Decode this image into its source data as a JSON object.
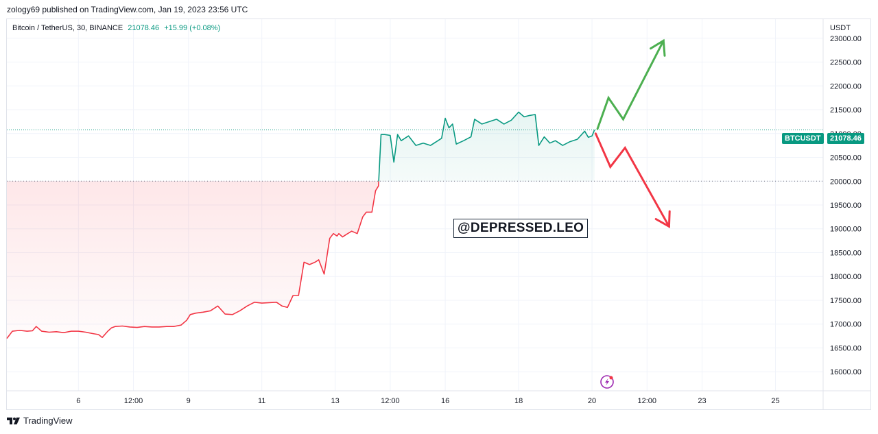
{
  "header": {
    "published_by": "zology69 published on TradingView.com, Jan 19, 2023 23:56 UTC"
  },
  "legend": {
    "symbol": "Bitcoin / TetherUS, 30, BINANCE",
    "price": "21078.46",
    "change": "+15.99 (+0.08%)"
  },
  "badges": {
    "symbol": "BTCUSDT",
    "price": "21078.46"
  },
  "watermark": "@DEPRESSED.LEO",
  "footer": {
    "brand": "TradingView"
  },
  "colors": {
    "up": "#089981",
    "down": "#f23645",
    "arrow_up": "#4caf50",
    "arrow_down": "#f23645",
    "grid": "#f0f3fa"
  },
  "chart_data": {
    "type": "line",
    "title": "Bitcoin / TetherUS, 30, BINANCE",
    "currency_label": "USDT",
    "ylim": [
      15600,
      23400
    ],
    "y_ticks": [
      16000,
      16500,
      17000,
      17500,
      18000,
      18500,
      19000,
      19500,
      20000,
      20500,
      21000,
      21500,
      22000,
      22500,
      23000
    ],
    "y_tick_labels": [
      "16000.00",
      "16500.00",
      "17000.00",
      "17500.00",
      "18000.00",
      "18500.00",
      "19000.00",
      "19500.00",
      "20000.00",
      "20500.00",
      "21000.00",
      "21500.00",
      "22000.00",
      "22500.00",
      "23000.00"
    ],
    "x_range_days": [
      4.05,
      26.3
    ],
    "x_ticks": [
      {
        "t": 6.0,
        "label": "6"
      },
      {
        "t": 7.5,
        "label": "12:00"
      },
      {
        "t": 9.0,
        "label": "9"
      },
      {
        "t": 11.0,
        "label": "11"
      },
      {
        "t": 13.0,
        "label": "13"
      },
      {
        "t": 14.5,
        "label": "12:00"
      },
      {
        "t": 16.0,
        "label": "16"
      },
      {
        "t": 18.0,
        "label": "18"
      },
      {
        "t": 20.0,
        "label": "20"
      },
      {
        "t": 21.5,
        "label": "12:00"
      },
      {
        "t": 23.0,
        "label": "23"
      },
      {
        "t": 25.0,
        "label": "25"
      }
    ],
    "baseline": 20000,
    "last_price": 21078.46,
    "series": [
      {
        "name": "BTCUSDT",
        "x": [
          4.05,
          4.2,
          4.4,
          4.6,
          4.75,
          4.85,
          5.0,
          5.2,
          5.4,
          5.6,
          5.8,
          6.0,
          6.2,
          6.4,
          6.55,
          6.65,
          6.8,
          6.9,
          7.0,
          7.2,
          7.4,
          7.6,
          7.8,
          8.0,
          8.2,
          8.4,
          8.6,
          8.8,
          8.95,
          9.05,
          9.2,
          9.4,
          9.6,
          9.8,
          10.0,
          10.2,
          10.4,
          10.6,
          10.8,
          11.0,
          11.2,
          11.4,
          11.55,
          11.7,
          11.85,
          12.0,
          12.15,
          12.3,
          12.45,
          12.55,
          12.7,
          12.85,
          12.95,
          13.05,
          13.1,
          13.2,
          13.3,
          13.45,
          13.6,
          13.75,
          13.85,
          14.0,
          14.1,
          14.18,
          14.25,
          14.35,
          14.5,
          14.6,
          14.7,
          14.8,
          15.0,
          15.2,
          15.4,
          15.6,
          15.8,
          15.9,
          16.0,
          16.1,
          16.2,
          16.3,
          16.5,
          16.7,
          16.8,
          17.0,
          17.2,
          17.4,
          17.6,
          17.8,
          18.0,
          18.15,
          18.3,
          18.45,
          18.55,
          18.7,
          18.85,
          19.0,
          19.2,
          19.4,
          19.6,
          19.8,
          19.9,
          20.0,
          20.07
        ],
        "y": [
          16700,
          16850,
          16870,
          16850,
          16860,
          16950,
          16850,
          16830,
          16840,
          16820,
          16850,
          16850,
          16830,
          16800,
          16780,
          16720,
          16850,
          16920,
          16950,
          16960,
          16940,
          16930,
          16950,
          16940,
          16940,
          16950,
          16950,
          16980,
          17080,
          17200,
          17230,
          17250,
          17280,
          17380,
          17210,
          17200,
          17280,
          17380,
          17460,
          17440,
          17450,
          17460,
          17380,
          17350,
          17600,
          17600,
          18300,
          18250,
          18300,
          18350,
          18050,
          18800,
          18900,
          18850,
          18900,
          18830,
          18880,
          18950,
          18900,
          19250,
          19350,
          19350,
          19800,
          19900,
          20980,
          20980,
          20960,
          20400,
          20980,
          20850,
          20950,
          20750,
          20800,
          20750,
          20850,
          20900,
          21320,
          21120,
          21200,
          20780,
          20850,
          20930,
          21300,
          21200,
          21250,
          21300,
          21200,
          21280,
          21450,
          21350,
          21380,
          21400,
          20750,
          20930,
          20800,
          20850,
          20750,
          20830,
          20880,
          21050,
          20920,
          20950,
          21078
        ]
      }
    ],
    "projections": [
      {
        "name": "bullish-path",
        "color": "#4caf50",
        "x": [
          20.15,
          20.45,
          20.85,
          21.95
        ],
        "y": [
          21100,
          21750,
          21300,
          22950
        ],
        "arrow_tip": [
          21.95,
          22950
        ]
      },
      {
        "name": "bearish-path",
        "color": "#f23645",
        "x": [
          20.1,
          20.5,
          20.9,
          22.1
        ],
        "y": [
          21000,
          20300,
          20700,
          19050
        ],
        "arrow_tip": [
          22.1,
          19050
        ]
      }
    ]
  }
}
